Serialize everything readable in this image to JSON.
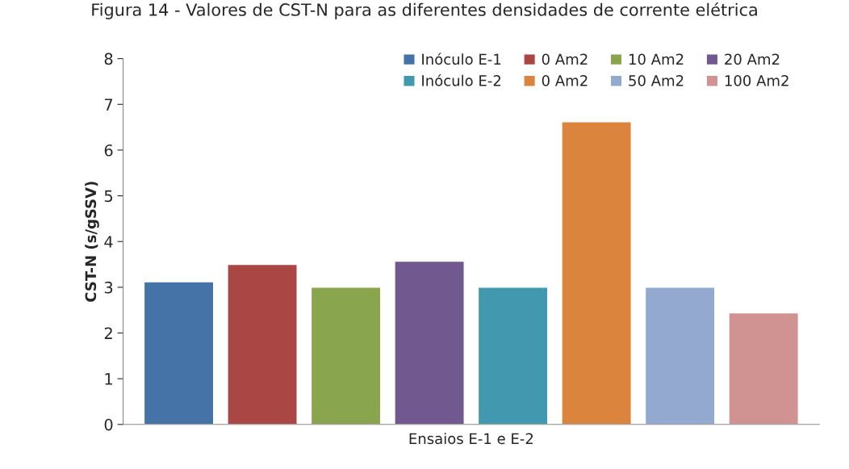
{
  "chart_data": {
    "type": "bar",
    "title": "Figura 14 - Valores de CST-N para as diferentes densidades de corrente elétrica",
    "xlabel": "Ensaios E-1 e E-2",
    "ylabel": "CST-N (s/gSSV)",
    "categories": [
      null
    ],
    "series": [
      {
        "name": "Inóculo E-1",
        "color": "#4572a7",
        "values": [
          3.12
        ]
      },
      {
        "name": "0 Am2",
        "color": "#aa4643",
        "values": [
          3.5
        ]
      },
      {
        "name": "10 Am2",
        "color": "#89a54e",
        "values": [
          3.0
        ]
      },
      {
        "name": "20 Am2",
        "color": "#71588f",
        "values": [
          3.57
        ]
      },
      {
        "name": "Inóculo E-2",
        "color": "#4198af",
        "values": [
          3.0
        ]
      },
      {
        "name": "0 Am2",
        "color": "#db843d",
        "values": [
          6.62
        ]
      },
      {
        "name": "50 Am2",
        "color": "#93a9cf",
        "values": [
          3.0
        ]
      },
      {
        "name": "100 Am2",
        "color": "#d19392",
        "values": [
          2.44
        ]
      }
    ],
    "ylim": [
      0,
      8
    ],
    "yticks": [
      0,
      1,
      2,
      3,
      4,
      5,
      6,
      7,
      8
    ],
    "grid": false,
    "legend": "top"
  }
}
